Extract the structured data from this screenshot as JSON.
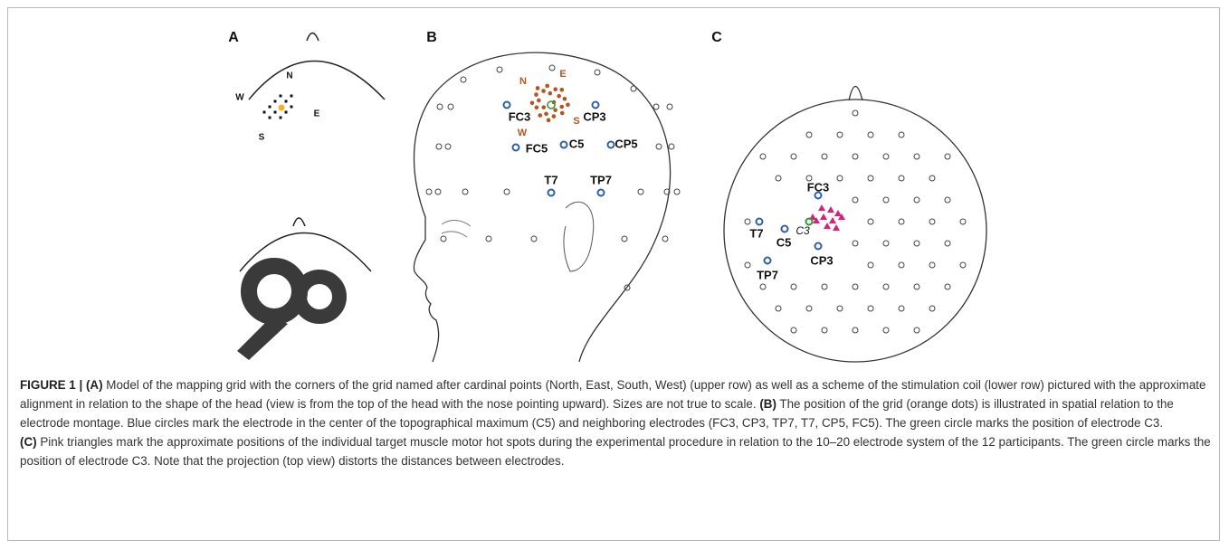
{
  "panels": [
    {
      "label": "A",
      "grid_labels": [
        "N",
        "W",
        "E",
        "S"
      ]
    },
    {
      "label": "B",
      "grid_labels": [
        "N",
        "E",
        "S",
        "W"
      ],
      "electrodes": [
        "FC3",
        "CP3",
        "FC5",
        "C5",
        "CP5",
        "T7",
        "TP7"
      ]
    },
    {
      "label": "C",
      "electrodes": [
        "FC3",
        "C3",
        "T7",
        "C5",
        "CP3",
        "TP7"
      ]
    }
  ],
  "caption": {
    "label": "FIGURE 1 |",
    "sections": [
      {
        "tag": "(A)",
        "text": "Model of the mapping grid with the corners of the grid named after cardinal points (North, East, South, West) (upper row) as well as a scheme of the stimulation coil (lower row) pictured with the approximate alignment in relation to the shape of the head (view is from the top of the head with the nose pointing upward). Sizes are not true to scale."
      },
      {
        "tag": "(B)",
        "text": "The position of the grid (orange dots) is illustrated in spatial relation to the electrode montage. Blue circles mark the electrode in the center of the topographical maximum (C5) and neighboring electrodes (FC3, CP3, TP7, T7, CP5, FC5). The green circle marks the position of electrode C3."
      },
      {
        "tag": "(C)",
        "text": "Pink triangles mark the approximate positions of the individual target muscle motor hot spots during the experimental procedure in relation to the 10–20 electrode system of the 12 participants. The green circle marks the position of electrode C3. Note that the projection (top view) distorts the distances between electrodes."
      }
    ]
  }
}
